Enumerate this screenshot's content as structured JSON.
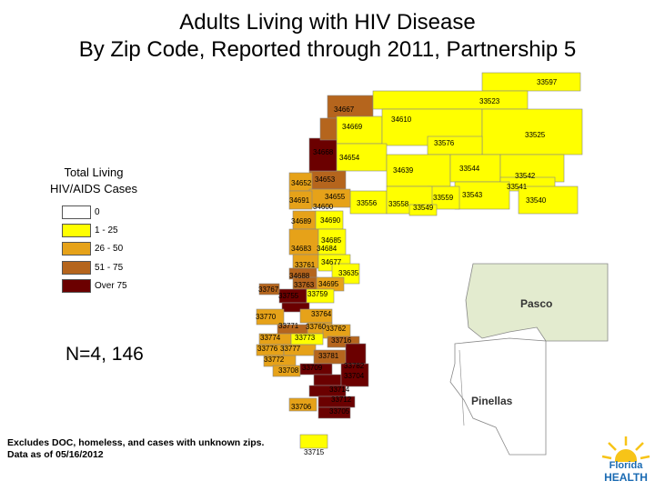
{
  "title": {
    "line1": "Adults Living with HIV Disease",
    "line2": "By Zip Code, Reported through 2011, Partnership 5"
  },
  "legend": {
    "title_line1": "Total Living",
    "title_line2": "HIV/AIDS Cases",
    "items": [
      {
        "label": "0",
        "color": "#ffffff"
      },
      {
        "label": "1 - 25",
        "color": "#ffff00"
      },
      {
        "label": "26 - 50",
        "color": "#e6a219"
      },
      {
        "label": "51 - 75",
        "color": "#b5651d"
      },
      {
        "label": "Over 75",
        "color": "#6b0000"
      }
    ]
  },
  "n_count": "N=4, 146",
  "footnote": {
    "line1": "Excludes DOC, homeless, and cases with unknown zips.",
    "line2": "Data as of 05/16/2012"
  },
  "counties": [
    "Pasco",
    "Pinellas"
  ],
  "zip_labels": [
    "33597",
    "33523",
    "34667",
    "34669",
    "34610",
    "33525",
    "33576",
    "34668",
    "34654",
    "34639",
    "33544",
    "33542",
    "34652",
    "34653",
    "33541",
    "34655",
    "34691",
    "34600",
    "33556",
    "33558",
    "33559",
    "33543",
    "33549",
    "33540",
    "34689",
    "34690",
    "34683",
    "34684",
    "34685",
    "33761",
    "34677",
    "34688",
    "33635",
    "33763",
    "34695",
    "33767",
    "33755",
    "33759",
    "33770",
    "33764",
    "33771",
    "33760",
    "33762",
    "33774",
    "33773",
    "33716",
    "33776",
    "33777",
    "33781",
    "33772",
    "33782",
    "33708",
    "33709",
    "33714",
    "33704",
    "33706",
    "33712",
    "33705",
    "33715"
  ],
  "logo": {
    "line1": "Florida",
    "line2": "HEALTH"
  },
  "colors": {
    "zero": "#ffffff",
    "low": "#ffff00",
    "mid": "#e6a219",
    "high": "#b5651d",
    "top": "#6b0000",
    "pasco_fill": "#e3ebcf",
    "outline": "#888888"
  }
}
